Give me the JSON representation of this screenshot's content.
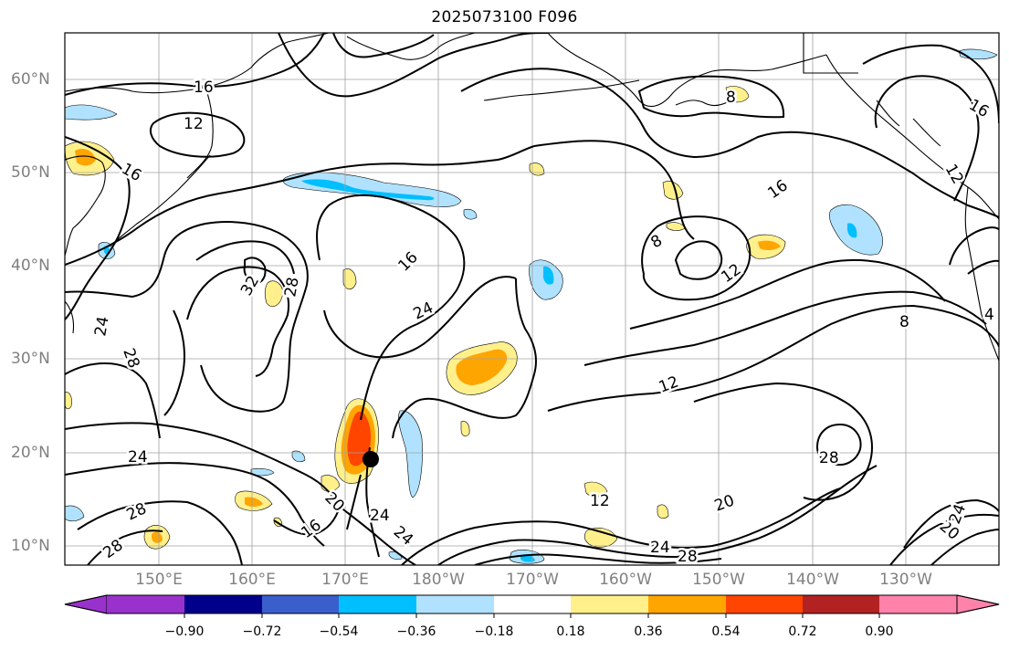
{
  "title": "2025073100 F096",
  "lat_labels": [
    {
      "text": "60°N",
      "lat": 60
    },
    {
      "text": "50°N",
      "lat": 50
    },
    {
      "text": "40°N",
      "lat": 40
    },
    {
      "text": "30°N",
      "lat": 30
    },
    {
      "text": "20°N",
      "lat": 20
    },
    {
      "text": "10°N",
      "lat": 10
    }
  ],
  "lon_labels": [
    {
      "text": "150°E",
      "lon": 150
    },
    {
      "text": "160°E",
      "lon": 160
    },
    {
      "text": "170°E",
      "lon": 170
    },
    {
      "text": "180°W",
      "lon": 180
    },
    {
      "text": "170°W",
      "lon": 190
    },
    {
      "text": "160°W",
      "lon": 200
    },
    {
      "text": "150°W",
      "lon": 210
    },
    {
      "text": "140°W",
      "lon": 220
    },
    {
      "text": "130°W",
      "lon": 230
    }
  ],
  "colorbar": {
    "colors": [
      "#9932cc",
      "#00008b",
      "#3a5fcd",
      "#00bfff",
      "#b0e2ff",
      "#ffffff",
      "#fff08c",
      "#ffa500",
      "#ff4500",
      "#b22222",
      "#ff82ab",
      "#ff82ab"
    ],
    "ticks": [
      "−0.90",
      "−0.72",
      "−0.54",
      "−0.36",
      "−0.18",
      "0.18",
      "0.36",
      "0.54",
      "0.72",
      "0.90"
    ]
  },
  "contour_labels": [
    {
      "text": "16"
    },
    {
      "text": "12"
    },
    {
      "text": "16"
    },
    {
      "text": "8"
    },
    {
      "text": "16"
    },
    {
      "text": "12"
    },
    {
      "text": "16"
    },
    {
      "text": "8"
    },
    {
      "text": "12"
    },
    {
      "text": "32"
    },
    {
      "text": "28"
    },
    {
      "text": "24"
    },
    {
      "text": "28"
    },
    {
      "text": "24"
    },
    {
      "text": "16"
    },
    {
      "text": "12"
    },
    {
      "text": "8"
    },
    {
      "text": "24"
    },
    {
      "text": "28"
    },
    {
      "text": "28"
    },
    {
      "text": "20"
    },
    {
      "text": "24"
    },
    {
      "text": "24"
    },
    {
      "text": "16"
    },
    {
      "text": "12"
    },
    {
      "text": "20"
    },
    {
      "text": "24"
    },
    {
      "text": "28"
    },
    {
      "text": "20"
    },
    {
      "text": "24"
    },
    {
      "text": "4"
    }
  ],
  "marker": {
    "name": "storm-center",
    "lon": 173.5,
    "lat": 19.2
  }
}
